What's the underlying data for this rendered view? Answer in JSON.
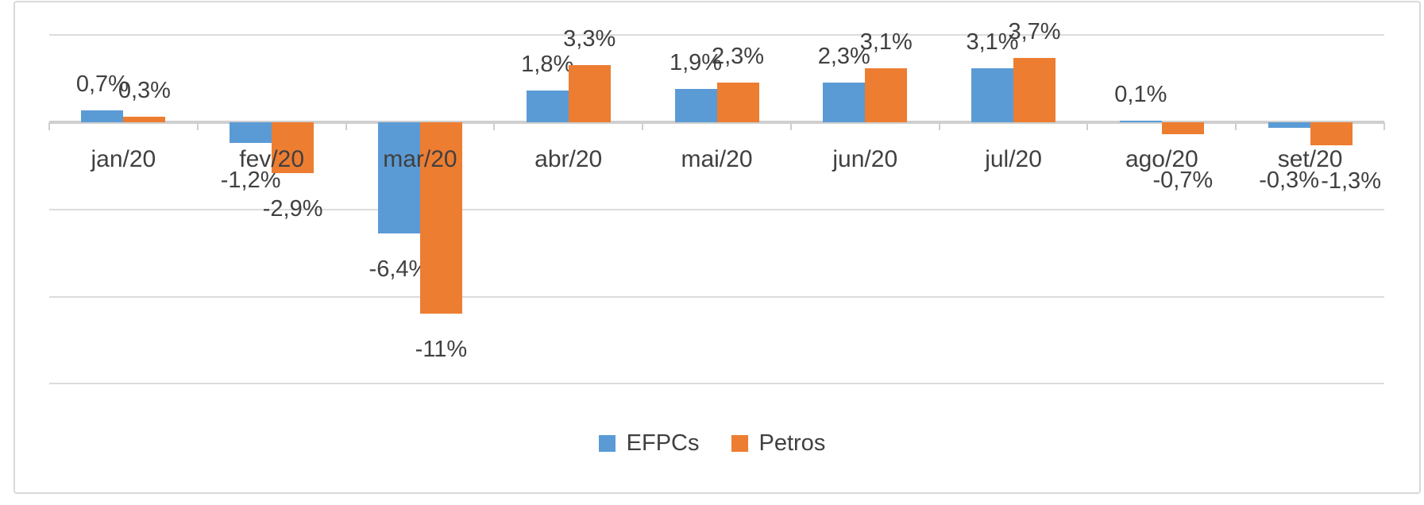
{
  "chart_data": {
    "type": "bar",
    "title": "",
    "xlabel": "",
    "ylabel": "",
    "categories": [
      "jan/20",
      "fev/20",
      "mar/20",
      "abr/20",
      "mai/20",
      "jun/20",
      "jul/20",
      "ago/20",
      "set/20"
    ],
    "series": [
      {
        "name": "EFPCs",
        "color": "#5B9BD5",
        "values": [
          0.7,
          -1.2,
          -6.4,
          1.8,
          1.9,
          2.3,
          3.1,
          0.1,
          -0.3
        ],
        "labels": [
          "0,7%",
          "-1,2%",
          "-6,4%",
          "1,8%",
          "1,9%",
          "2,3%",
          "3,1%",
          "0,1%",
          "-0,3%"
        ],
        "label_dx": [
          0,
          0,
          0,
          0,
          0,
          0,
          0,
          0,
          0
        ]
      },
      {
        "name": "Petros",
        "color": "#ED7D31",
        "values": [
          0.3,
          -2.9,
          -11,
          3.3,
          2.3,
          3.1,
          3.7,
          -0.7,
          -1.3
        ],
        "labels": [
          "0,3%",
          "-2,9%",
          "-11%",
          "3,3%",
          "2,3%",
          "3,1%",
          "3,7%",
          "-0,7%",
          "-1,3%"
        ],
        "label_dx": [
          0,
          0,
          0,
          0,
          0,
          0,
          0,
          0,
          25
        ]
      }
    ],
    "ylim": [
      -15,
      5
    ],
    "gridline_interval": 5,
    "grid": true,
    "legend_position": "bottom",
    "value_axis_labels_visible": false,
    "colors": {
      "gridline": "#DCDCDC",
      "axis": "#CFCFCF",
      "text": "#404040",
      "frame_border": "#D9D9D9"
    }
  }
}
